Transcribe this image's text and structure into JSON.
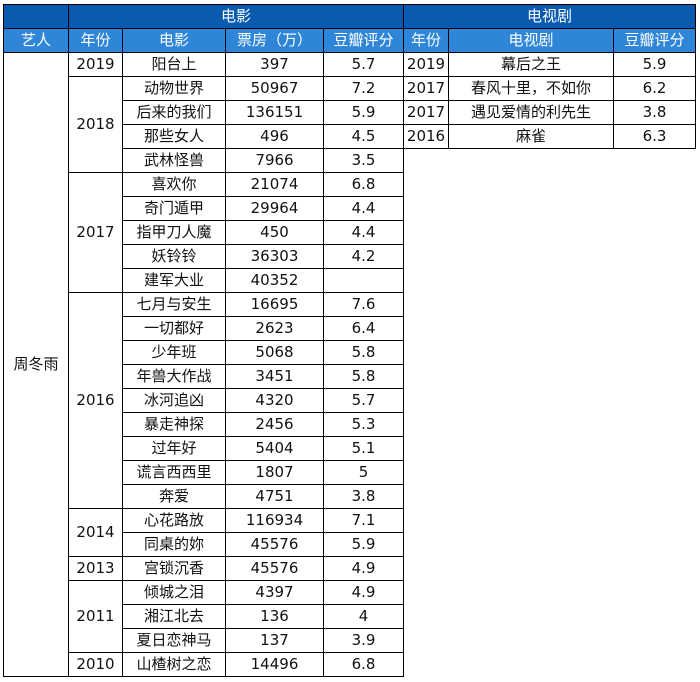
{
  "movie_section": {
    "title": "电影",
    "headers": [
      "艺人",
      "年份",
      "电影",
      "票房（万）",
      "豆瓣评分"
    ],
    "artist": "周冬雨",
    "groups": [
      {
        "year": "2019",
        "rows": [
          [
            "阳台上",
            "397",
            "5.7"
          ]
        ]
      },
      {
        "year": "2018",
        "rows": [
          [
            "动物世界",
            "50967",
            "7.2"
          ],
          [
            "后来的我们",
            "136151",
            "5.9"
          ],
          [
            "那些女人",
            "496",
            "4.5"
          ],
          [
            "武林怪兽",
            "7966",
            "3.5"
          ]
        ]
      },
      {
        "year": "2017",
        "rows": [
          [
            "喜欢你",
            "21074",
            "6.8"
          ],
          [
            "奇门遁甲",
            "29964",
            "4.4"
          ],
          [
            "指甲刀人魔",
            "450",
            "4.4"
          ],
          [
            "妖铃铃",
            "36303",
            "4.2"
          ],
          [
            "建军大业",
            "40352",
            ""
          ]
        ]
      },
      {
        "year": "2016",
        "rows": [
          [
            "七月与安生",
            "16695",
            "7.6"
          ],
          [
            "一切都好",
            "2623",
            "6.4"
          ],
          [
            "少年班",
            "5068",
            "5.8"
          ],
          [
            "年兽大作战",
            "3451",
            "5.8"
          ],
          [
            "冰河追凶",
            "4320",
            "5.7"
          ],
          [
            "暴走神探",
            "2456",
            "5.3"
          ],
          [
            "过年好",
            "5404",
            "5.1"
          ],
          [
            "谎言西西里",
            "1807",
            "5"
          ],
          [
            "奔爱",
            "4751",
            "3.8"
          ]
        ]
      },
      {
        "year": "2014",
        "rows": [
          [
            "心花路放",
            "116934",
            "7.1"
          ],
          [
            "同桌的妳",
            "45576",
            "5.9"
          ]
        ]
      },
      {
        "year": "2013",
        "rows": [
          [
            "宫锁沉香",
            "45576",
            "4.9"
          ]
        ]
      },
      {
        "year": "2011",
        "rows": [
          [
            "倾城之泪",
            "4397",
            "4.9"
          ],
          [
            "湘江北去",
            "136",
            "4"
          ],
          [
            "夏日恋神马",
            "137",
            "3.9"
          ]
        ]
      },
      {
        "year": "2010",
        "rows": [
          [
            "山楂树之恋",
            "14496",
            "6.8"
          ]
        ]
      }
    ]
  },
  "tv_section": {
    "title": "电视剧",
    "headers": [
      "年份",
      "电视剧",
      "豆瓣评分"
    ],
    "rows": [
      [
        "2019",
        "幕后之王",
        "5.9"
      ],
      [
        "2017",
        "春风十里，不如你",
        "6.2"
      ],
      [
        "2017",
        "遇见爱情的利先生",
        "3.8"
      ],
      [
        "2016",
        "麻雀",
        "6.3"
      ]
    ]
  },
  "colors": {
    "header_dark": "#0a5ab0",
    "header_light": "#2f86d8",
    "border": "#000000"
  }
}
